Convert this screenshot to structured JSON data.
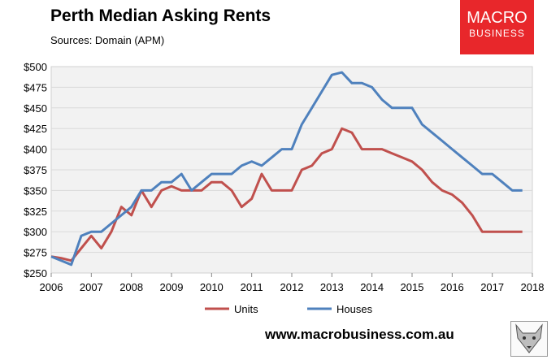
{
  "chart_data": {
    "type": "line",
    "title": "Perth Median Asking Rents",
    "subtitle": "Sources: Domain (APM)",
    "xlim": [
      2006,
      2018
    ],
    "ylim": [
      250,
      500
    ],
    "x_ticks": [
      "2006",
      "2007",
      "2008",
      "2009",
      "2010",
      "2011",
      "2012",
      "2013",
      "2014",
      "2015",
      "2016",
      "2017",
      "2018"
    ],
    "y_ticks": [
      "$250",
      "$275",
      "$300",
      "$325",
      "$350",
      "$375",
      "$400",
      "$425",
      "$450",
      "$475",
      "$500"
    ],
    "series": [
      {
        "name": "Units",
        "color": "#c0504d",
        "points": [
          [
            2006.0,
            270
          ],
          [
            2006.25,
            268
          ],
          [
            2006.5,
            265
          ],
          [
            2006.75,
            280
          ],
          [
            2007.0,
            295
          ],
          [
            2007.25,
            280
          ],
          [
            2007.5,
            300
          ],
          [
            2007.75,
            330
          ],
          [
            2008.0,
            320
          ],
          [
            2008.25,
            350
          ],
          [
            2008.5,
            330
          ],
          [
            2008.75,
            350
          ],
          [
            2009.0,
            355
          ],
          [
            2009.25,
            350
          ],
          [
            2009.5,
            350
          ],
          [
            2009.75,
            350
          ],
          [
            2010.0,
            360
          ],
          [
            2010.25,
            360
          ],
          [
            2010.5,
            350
          ],
          [
            2010.75,
            330
          ],
          [
            2011.0,
            340
          ],
          [
            2011.25,
            370
          ],
          [
            2011.5,
            350
          ],
          [
            2011.75,
            350
          ],
          [
            2012.0,
            350
          ],
          [
            2012.25,
            375
          ],
          [
            2012.5,
            380
          ],
          [
            2012.75,
            395
          ],
          [
            2013.0,
            400
          ],
          [
            2013.25,
            425
          ],
          [
            2013.5,
            420
          ],
          [
            2013.75,
            400
          ],
          [
            2014.0,
            400
          ],
          [
            2014.25,
            400
          ],
          [
            2014.5,
            395
          ],
          [
            2014.75,
            390
          ],
          [
            2015.0,
            385
          ],
          [
            2015.25,
            375
          ],
          [
            2015.5,
            360
          ],
          [
            2015.75,
            350
          ],
          [
            2016.0,
            345
          ],
          [
            2016.25,
            335
          ],
          [
            2016.5,
            320
          ],
          [
            2016.75,
            300
          ],
          [
            2017.0,
            300
          ],
          [
            2017.25,
            300
          ],
          [
            2017.5,
            300
          ],
          [
            2017.75,
            300
          ]
        ]
      },
      {
        "name": "Houses",
        "color": "#4f81bd",
        "points": [
          [
            2006.0,
            270
          ],
          [
            2006.25,
            265
          ],
          [
            2006.5,
            260
          ],
          [
            2006.75,
            295
          ],
          [
            2007.0,
            300
          ],
          [
            2007.25,
            300
          ],
          [
            2007.5,
            310
          ],
          [
            2007.75,
            320
          ],
          [
            2008.0,
            330
          ],
          [
            2008.25,
            350
          ],
          [
            2008.5,
            350
          ],
          [
            2008.75,
            360
          ],
          [
            2009.0,
            360
          ],
          [
            2009.25,
            370
          ],
          [
            2009.5,
            350
          ],
          [
            2009.75,
            360
          ],
          [
            2010.0,
            370
          ],
          [
            2010.25,
            370
          ],
          [
            2010.5,
            370
          ],
          [
            2010.75,
            380
          ],
          [
            2011.0,
            385
          ],
          [
            2011.25,
            380
          ],
          [
            2011.5,
            390
          ],
          [
            2011.75,
            400
          ],
          [
            2012.0,
            400
          ],
          [
            2012.25,
            430
          ],
          [
            2012.5,
            450
          ],
          [
            2012.75,
            470
          ],
          [
            2013.0,
            490
          ],
          [
            2013.25,
            493
          ],
          [
            2013.5,
            480
          ],
          [
            2013.75,
            480
          ],
          [
            2014.0,
            475
          ],
          [
            2014.25,
            460
          ],
          [
            2014.5,
            450
          ],
          [
            2014.75,
            450
          ],
          [
            2015.0,
            450
          ],
          [
            2015.25,
            430
          ],
          [
            2015.5,
            420
          ],
          [
            2015.75,
            410
          ],
          [
            2016.0,
            400
          ],
          [
            2016.25,
            390
          ],
          [
            2016.5,
            380
          ],
          [
            2016.75,
            370
          ],
          [
            2017.0,
            370
          ],
          [
            2017.25,
            360
          ],
          [
            2017.5,
            350
          ],
          [
            2017.75,
            350
          ]
        ]
      }
    ],
    "legend_position": "bottom"
  },
  "branding": {
    "logo_line1": "MACRO",
    "logo_line2": "BUSINESS",
    "logo_color": "#e8272b",
    "website": "www.macrobusiness.com.au"
  }
}
